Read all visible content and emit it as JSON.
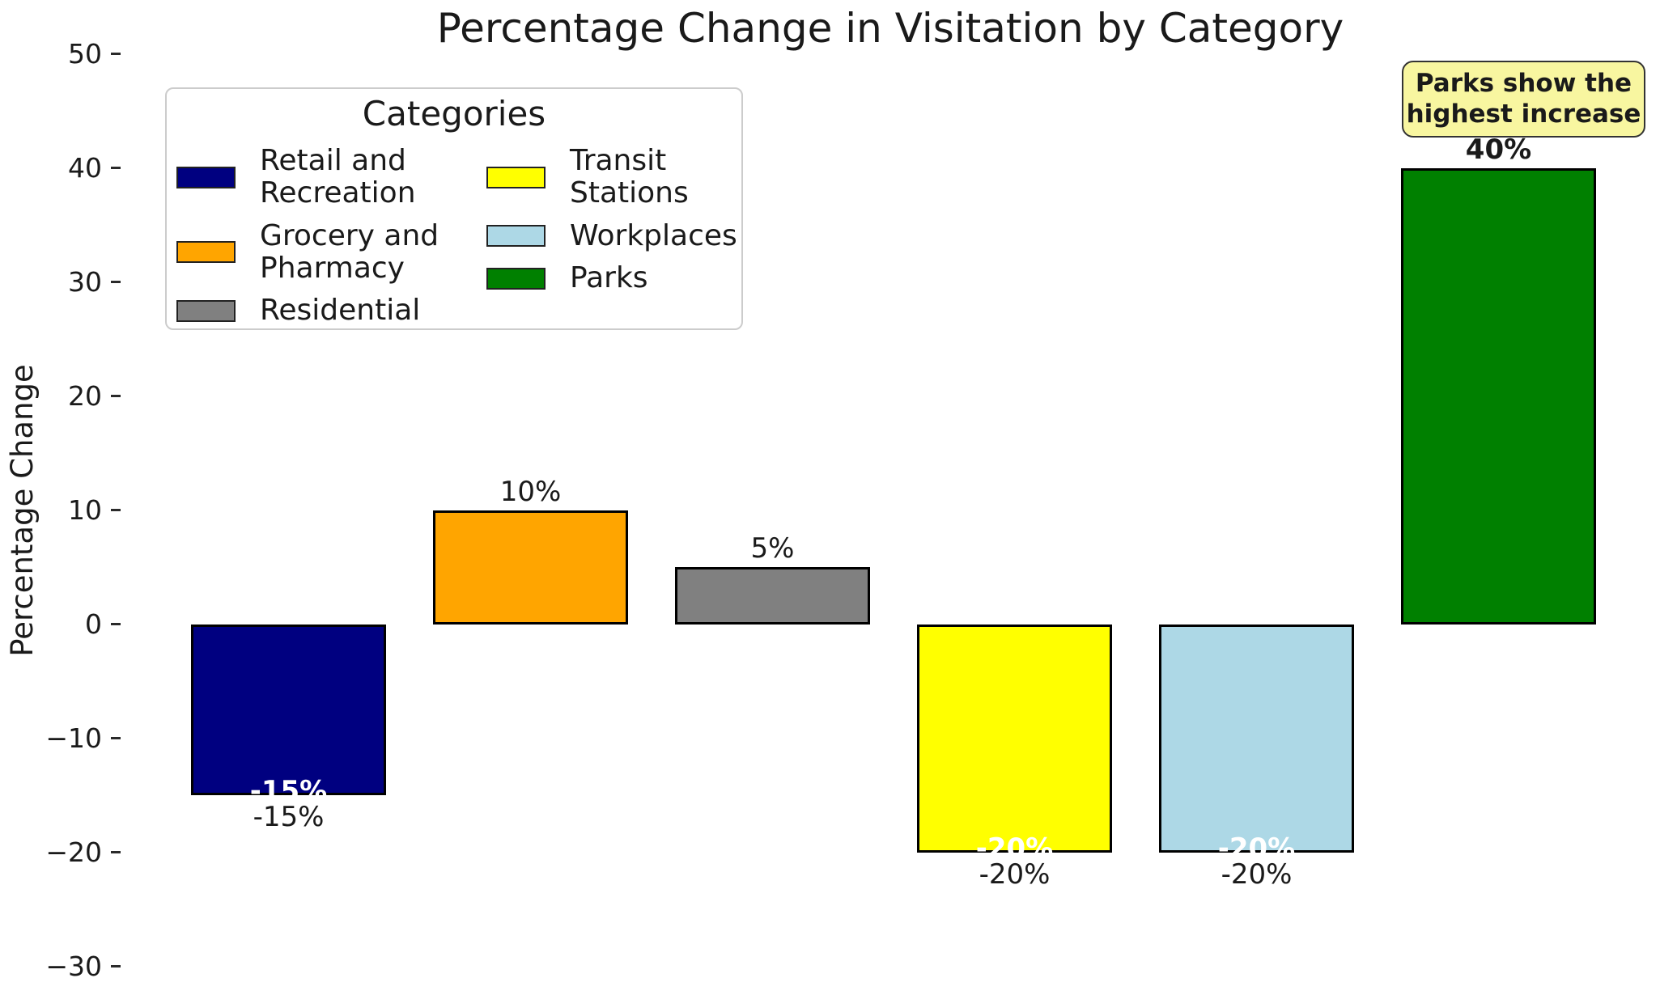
{
  "chart_data": {
    "type": "bar",
    "title": "Percentage Change in Visitation by Category",
    "ylabel": "Percentage Change",
    "xlabel": "",
    "ylim": [
      -33,
      52
    ],
    "grid": false,
    "categories": [
      "Retail and Recreation",
      "Grocery and Pharmacy",
      "Residential",
      "Transit Stations",
      "Workplaces",
      "Parks"
    ],
    "values": [
      -15,
      10,
      5,
      -20,
      -20,
      40
    ],
    "bar_labels": [
      "-15%",
      "10%",
      "5%",
      "-20%",
      "-20%",
      "40%"
    ],
    "bar_colors": [
      "#000080",
      "#FFA500",
      "#808080",
      "#FFFF00",
      "#ADD8E6",
      "#008000"
    ],
    "bar_edge_color": "#000000",
    "bold_label_indices": [
      5
    ],
    "white_inner_label_indices": [
      0,
      3,
      4
    ],
    "yticks": [
      {
        "value": 50,
        "label": "50"
      },
      {
        "value": 40,
        "label": "40"
      },
      {
        "value": 30,
        "label": "30"
      },
      {
        "value": 20,
        "label": "20"
      },
      {
        "value": 10,
        "label": "10"
      },
      {
        "value": 0,
        "label": "0"
      },
      {
        "value": -10,
        "label": "−10"
      },
      {
        "value": -20,
        "label": "−20"
      },
      {
        "value": -30,
        "label": "−30"
      }
    ],
    "legend": {
      "title": "Categories",
      "position": "upper left",
      "columns": [
        [
          {
            "label": "Retail and\nRecreation",
            "color": "#000080"
          },
          {
            "label": "Grocery and\nPharmacy",
            "color": "#FFA500"
          },
          {
            "label": "Residential",
            "color": "#808080"
          }
        ],
        [
          {
            "label": "Transit\nStations",
            "color": "#FFFF00"
          },
          {
            "label": "Workplaces",
            "color": "#ADD8E6"
          },
          {
            "label": "Parks",
            "color": "#008000"
          }
        ]
      ]
    },
    "annotation": {
      "text": "Parks show the\nhighest increase",
      "fill_color": "#F8F6A0",
      "border_color": "#333333"
    }
  }
}
